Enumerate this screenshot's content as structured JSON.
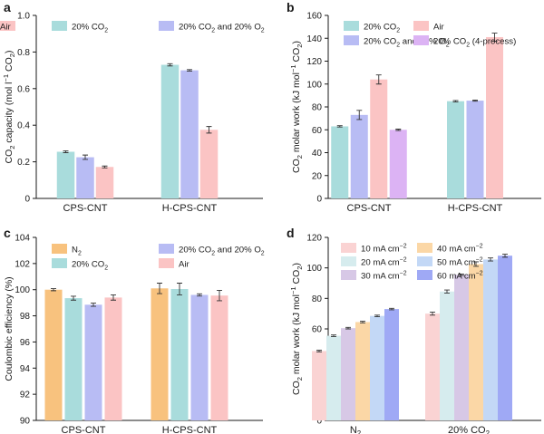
{
  "panels": [
    {
      "label": "a",
      "ylabel": "CO2 capacity (mol l−1 CO2)",
      "ylim": [
        0,
        1.0
      ],
      "ticks": [
        0,
        0.2,
        0.4,
        0.6,
        0.8,
        1.0
      ],
      "tick_labels": [
        "0",
        "0.2",
        "0.4",
        "0.6",
        "0.8",
        "1.0"
      ],
      "legend": [
        {
          "text": "20% CO2",
          "color": "#a9dcdc"
        },
        {
          "text": "20% CO2 and 20% O2",
          "color": "#b8bcf4"
        },
        {
          "text": "Air",
          "color": "#fbc4c4"
        }
      ]
    },
    {
      "label": "b",
      "ylabel": "CO2 molar work (kJ mol−1 CO2)",
      "ylim": [
        0,
        160
      ],
      "ticks": [
        0,
        20,
        40,
        60,
        80,
        100,
        120,
        140,
        160
      ],
      "tick_labels": [
        "0",
        "20",
        "40",
        "60",
        "80",
        "100",
        "120",
        "140",
        "160"
      ],
      "legend": [
        {
          "text": "20% CO2",
          "color": "#a9dcdc"
        },
        {
          "text": "20% CO2 and 20% O2",
          "color": "#b8bcf4"
        },
        {
          "text": "Air",
          "color": "#fbc4c4"
        },
        {
          "text": "20% CO2 (4-process)",
          "color": "#dcb3f4"
        }
      ]
    },
    {
      "label": "c",
      "ylabel": "Coulombic efficiency (%)",
      "ylim": [
        90,
        104
      ],
      "ticks": [
        90,
        92,
        94,
        96,
        98,
        100,
        102,
        104
      ],
      "tick_labels": [
        "90",
        "92",
        "94",
        "96",
        "98",
        "100",
        "102",
        "104"
      ],
      "legend": [
        {
          "text": "N2",
          "color": "#f8c27e"
        },
        {
          "text": "20% CO2",
          "color": "#a9dcdc"
        },
        {
          "text": "20% CO2 and 20% O2",
          "color": "#b8bcf4"
        },
        {
          "text": "Air",
          "color": "#fbc4c4"
        }
      ]
    },
    {
      "label": "d",
      "ylabel": "CO2 molar work (kJ mol−1 CO2)",
      "ylim": [
        0,
        120
      ],
      "ticks": [
        0,
        20,
        40,
        60,
        80,
        100,
        120
      ],
      "tick_labels": [
        "0",
        "20",
        "40",
        "60",
        "80",
        "100",
        "120"
      ],
      "legend": [
        {
          "text": "10 mA cm−2",
          "color": "#fad3d3"
        },
        {
          "text": "20 mA cm−2",
          "color": "#d6ecee"
        },
        {
          "text": "30 mA cm−2",
          "color": "#d7c8e6"
        },
        {
          "text": "40 mA cm−2",
          "color": "#fbd7a6"
        },
        {
          "text": "50 mA cm−2",
          "color": "#c3d8f6"
        },
        {
          "text": "60 mA cm−2",
          "color": "#9fa9f5"
        }
      ]
    }
  ],
  "chart_data": [
    {
      "panel": "a",
      "type": "bar",
      "ylabel": "CO2 capacity (mol l−1 CO2)",
      "ylim": [
        0,
        1.0
      ],
      "categories": [
        "CPS-CNT",
        "H-CPS-CNT"
      ],
      "series": [
        {
          "name": "20% CO2",
          "color": "#a9dcdc",
          "values": [
            0.255,
            0.73
          ],
          "errors": [
            0.005,
            0.006
          ]
        },
        {
          "name": "20% CO2 and 20% O2",
          "color": "#b8bcf4",
          "values": [
            0.225,
            0.7
          ],
          "errors": [
            0.012,
            0.004
          ]
        },
        {
          "name": "Air",
          "color": "#fbc4c4",
          "values": [
            0.172,
            0.375
          ],
          "errors": [
            0.005,
            0.018
          ]
        }
      ]
    },
    {
      "panel": "b",
      "type": "bar",
      "ylabel": "CO2 molar work (kJ mol−1 CO2)",
      "ylim": [
        0,
        160
      ],
      "categories": [
        "CPS-CNT",
        "H-CPS-CNT"
      ],
      "series": [
        {
          "name": "20% CO2",
          "color": "#a9dcdc",
          "values": [
            63,
            85
          ],
          "errors": [
            0.6,
            0.6
          ]
        },
        {
          "name": "20% CO2 and 20% O2",
          "color": "#b8bcf4",
          "values": [
            73,
            85.5
          ],
          "errors": [
            4,
            0.5
          ]
        },
        {
          "name": "Air",
          "color": "#fbc4c4",
          "values": [
            104,
            141
          ],
          "errors": [
            4,
            3.5
          ]
        },
        {
          "name": "20% CO2 (4-process)",
          "color": "#dcb3f4",
          "values": [
            60,
            null
          ],
          "errors": [
            0.6,
            null
          ]
        }
      ]
    },
    {
      "panel": "c",
      "type": "bar",
      "ylabel": "Coulombic efficiency (%)",
      "ylim": [
        90,
        104
      ],
      "categories": [
        "CPS-CNT",
        "H-CPS-CNT"
      ],
      "series": [
        {
          "name": "N2",
          "color": "#f8c27e",
          "values": [
            100.0,
            100.1
          ],
          "errors": [
            0.08,
            0.4
          ]
        },
        {
          "name": "20% CO2",
          "color": "#a9dcdc",
          "values": [
            99.35,
            100.05
          ],
          "errors": [
            0.15,
            0.45
          ]
        },
        {
          "name": "20% CO2 and 20% O2",
          "color": "#b8bcf4",
          "values": [
            98.85,
            99.6
          ],
          "errors": [
            0.12,
            0.08
          ]
        },
        {
          "name": "Air",
          "color": "#fbc4c4",
          "values": [
            99.4,
            99.55
          ],
          "errors": [
            0.2,
            0.4
          ]
        }
      ]
    },
    {
      "panel": "d",
      "type": "bar",
      "ylabel": "CO2 molar work (kJ mol−1 CO2)",
      "ylim": [
        0,
        120
      ],
      "categories": [
        "N2",
        "20% CO2"
      ],
      "series": [
        {
          "name": "10 mA cm−2",
          "color": "#fad3d3",
          "values": [
            45.5,
            70
          ],
          "errors": [
            0.5,
            1
          ]
        },
        {
          "name": "20 mA cm−2",
          "color": "#d6ecee",
          "values": [
            55.5,
            84.5
          ],
          "errors": [
            0.5,
            1
          ]
        },
        {
          "name": "30 mA cm−2",
          "color": "#d7c8e6",
          "values": [
            60.5,
            95.5
          ],
          "errors": [
            0.5,
            0.5
          ]
        },
        {
          "name": "40 mA cm−2",
          "color": "#fbd7a6",
          "values": [
            64.5,
            102.5
          ],
          "errors": [
            0.5,
            1.5
          ]
        },
        {
          "name": "50 mA cm−2",
          "color": "#c3d8f6",
          "values": [
            68.5,
            105.5
          ],
          "errors": [
            0.5,
            1
          ]
        },
        {
          "name": "60 mA cm−2",
          "color": "#9fa9f5",
          "values": [
            73,
            108
          ],
          "errors": [
            0.5,
            1
          ]
        }
      ]
    }
  ]
}
